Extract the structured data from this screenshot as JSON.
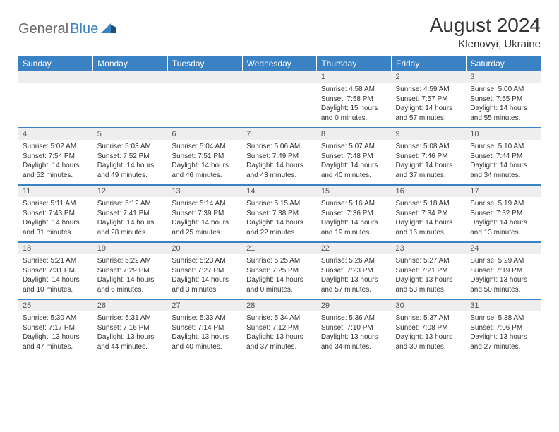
{
  "logo": {
    "general": "General",
    "blue": "Blue"
  },
  "title": "August 2024",
  "location": "Klenovyi, Ukraine",
  "label": {
    "sunrise": "Sunrise:",
    "sunset": "Sunset:",
    "daylight": "Daylight:"
  },
  "day_headers": [
    "Sunday",
    "Monday",
    "Tuesday",
    "Wednesday",
    "Thursday",
    "Friday",
    "Saturday"
  ],
  "colors": {
    "accent": "#3b82c4",
    "bg_gray": "#eeeeee",
    "text": "#333333"
  },
  "weeks": [
    [
      null,
      null,
      null,
      null,
      {
        "n": "1",
        "sr": "4:58 AM",
        "ss": "7:58 PM",
        "dl": "15 hours and 0 minutes."
      },
      {
        "n": "2",
        "sr": "4:59 AM",
        "ss": "7:57 PM",
        "dl": "14 hours and 57 minutes."
      },
      {
        "n": "3",
        "sr": "5:00 AM",
        "ss": "7:55 PM",
        "dl": "14 hours and 55 minutes."
      }
    ],
    [
      {
        "n": "4",
        "sr": "5:02 AM",
        "ss": "7:54 PM",
        "dl": "14 hours and 52 minutes."
      },
      {
        "n": "5",
        "sr": "5:03 AM",
        "ss": "7:52 PM",
        "dl": "14 hours and 49 minutes."
      },
      {
        "n": "6",
        "sr": "5:04 AM",
        "ss": "7:51 PM",
        "dl": "14 hours and 46 minutes."
      },
      {
        "n": "7",
        "sr": "5:06 AM",
        "ss": "7:49 PM",
        "dl": "14 hours and 43 minutes."
      },
      {
        "n": "8",
        "sr": "5:07 AM",
        "ss": "7:48 PM",
        "dl": "14 hours and 40 minutes."
      },
      {
        "n": "9",
        "sr": "5:08 AM",
        "ss": "7:46 PM",
        "dl": "14 hours and 37 minutes."
      },
      {
        "n": "10",
        "sr": "5:10 AM",
        "ss": "7:44 PM",
        "dl": "14 hours and 34 minutes."
      }
    ],
    [
      {
        "n": "11",
        "sr": "5:11 AM",
        "ss": "7:43 PM",
        "dl": "14 hours and 31 minutes."
      },
      {
        "n": "12",
        "sr": "5:12 AM",
        "ss": "7:41 PM",
        "dl": "14 hours and 28 minutes."
      },
      {
        "n": "13",
        "sr": "5:14 AM",
        "ss": "7:39 PM",
        "dl": "14 hours and 25 minutes."
      },
      {
        "n": "14",
        "sr": "5:15 AM",
        "ss": "7:38 PM",
        "dl": "14 hours and 22 minutes."
      },
      {
        "n": "15",
        "sr": "5:16 AM",
        "ss": "7:36 PM",
        "dl": "14 hours and 19 minutes."
      },
      {
        "n": "16",
        "sr": "5:18 AM",
        "ss": "7:34 PM",
        "dl": "14 hours and 16 minutes."
      },
      {
        "n": "17",
        "sr": "5:19 AM",
        "ss": "7:32 PM",
        "dl": "14 hours and 13 minutes."
      }
    ],
    [
      {
        "n": "18",
        "sr": "5:21 AM",
        "ss": "7:31 PM",
        "dl": "14 hours and 10 minutes."
      },
      {
        "n": "19",
        "sr": "5:22 AM",
        "ss": "7:29 PM",
        "dl": "14 hours and 6 minutes."
      },
      {
        "n": "20",
        "sr": "5:23 AM",
        "ss": "7:27 PM",
        "dl": "14 hours and 3 minutes."
      },
      {
        "n": "21",
        "sr": "5:25 AM",
        "ss": "7:25 PM",
        "dl": "14 hours and 0 minutes."
      },
      {
        "n": "22",
        "sr": "5:26 AM",
        "ss": "7:23 PM",
        "dl": "13 hours and 57 minutes."
      },
      {
        "n": "23",
        "sr": "5:27 AM",
        "ss": "7:21 PM",
        "dl": "13 hours and 53 minutes."
      },
      {
        "n": "24",
        "sr": "5:29 AM",
        "ss": "7:19 PM",
        "dl": "13 hours and 50 minutes."
      }
    ],
    [
      {
        "n": "25",
        "sr": "5:30 AM",
        "ss": "7:17 PM",
        "dl": "13 hours and 47 minutes."
      },
      {
        "n": "26",
        "sr": "5:31 AM",
        "ss": "7:16 PM",
        "dl": "13 hours and 44 minutes."
      },
      {
        "n": "27",
        "sr": "5:33 AM",
        "ss": "7:14 PM",
        "dl": "13 hours and 40 minutes."
      },
      {
        "n": "28",
        "sr": "5:34 AM",
        "ss": "7:12 PM",
        "dl": "13 hours and 37 minutes."
      },
      {
        "n": "29",
        "sr": "5:36 AM",
        "ss": "7:10 PM",
        "dl": "13 hours and 34 minutes."
      },
      {
        "n": "30",
        "sr": "5:37 AM",
        "ss": "7:08 PM",
        "dl": "13 hours and 30 minutes."
      },
      {
        "n": "31",
        "sr": "5:38 AM",
        "ss": "7:06 PM",
        "dl": "13 hours and 27 minutes."
      }
    ]
  ]
}
